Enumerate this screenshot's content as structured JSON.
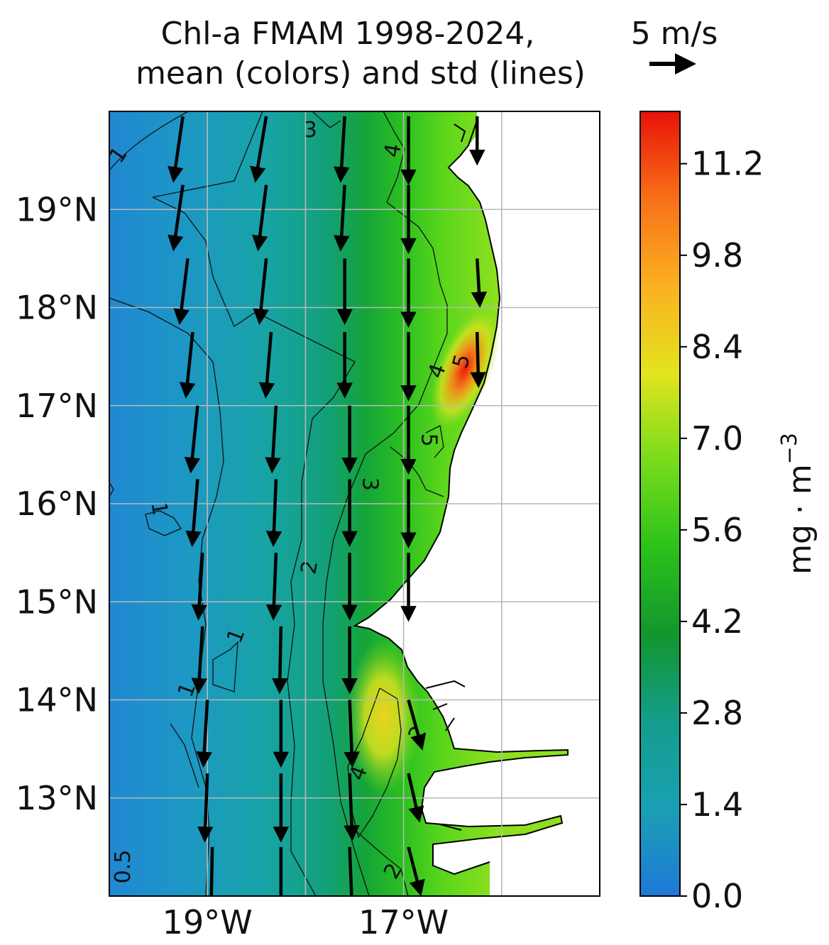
{
  "title_line1": "Chl-a FMAM 1998-2024,",
  "title_line2": "mean (colors) and std (lines)",
  "wind_key": {
    "label": "5 m/s",
    "speed": 5
  },
  "chart_data": {
    "type": "map",
    "map_extent": {
      "lon": [
        -20.0,
        -15.0
      ],
      "lat": [
        12.0,
        20.0
      ]
    },
    "lat_ticks": [
      {
        "value": 13,
        "label": "13°N"
      },
      {
        "value": 14,
        "label": "14°N"
      },
      {
        "value": 15,
        "label": "15°N"
      },
      {
        "value": 16,
        "label": "16°N"
      },
      {
        "value": 17,
        "label": "17°N"
      },
      {
        "value": 18,
        "label": "18°N"
      },
      {
        "value": 19,
        "label": "19°N"
      }
    ],
    "lon_ticks": [
      {
        "value": -19,
        "label": "19°W"
      },
      {
        "value": -17,
        "label": "17°W"
      }
    ],
    "gridlines": {
      "lon": [
        -19,
        -18,
        -17,
        -16
      ],
      "lat": [
        13,
        14,
        15,
        16,
        17,
        18,
        19
      ]
    },
    "colorbar": {
      "label": "mg · m",
      "label_exponent": "−3",
      "range": [
        0,
        12
      ],
      "ticks": [
        "0.0",
        "1.4",
        "2.8",
        "4.2",
        "5.6",
        "7.0",
        "8.4",
        "9.8",
        "11.2"
      ],
      "tick_values": [
        0,
        1.4,
        2.8,
        4.2,
        5.6,
        7.0,
        8.4,
        9.8,
        11.2
      ],
      "colors": [
        "#1f78d8",
        "#1aa0b4",
        "#139e8c",
        "#12962e",
        "#2cc21a",
        "#78dc1c",
        "#e4e41e",
        "#fbb021",
        "#f87018",
        "#e81208"
      ]
    },
    "contour_labels": [
      {
        "text": "1",
        "lon": -19.9,
        "lat": 19.55,
        "rotate": -55
      },
      {
        "text": "3",
        "lon": -17.95,
        "lat": 19.8,
        "rotate": 0
      },
      {
        "text": "4",
        "lon": -17.1,
        "lat": 19.6,
        "rotate": -80
      },
      {
        "text": "4",
        "lon": -16.65,
        "lat": 17.35,
        "rotate": -70
      },
      {
        "text": "5",
        "lon": -16.4,
        "lat": 17.45,
        "rotate": -75
      },
      {
        "text": "5",
        "lon": -16.75,
        "lat": 16.65,
        "rotate": 90
      },
      {
        "text": "3",
        "lon": -17.35,
        "lat": 16.2,
        "rotate": 90
      },
      {
        "text": "1",
        "lon": -19.5,
        "lat": 15.95,
        "rotate": 80
      },
      {
        "text": "2",
        "lon": -17.95,
        "lat": 15.35,
        "rotate": -80
      },
      {
        "text": "1",
        "lon": -18.7,
        "lat": 14.65,
        "rotate": -70
      },
      {
        "text": "1",
        "lon": -19.2,
        "lat": 14.1,
        "rotate": -70
      },
      {
        "text": "2",
        "lon": -16.85,
        "lat": 13.65,
        "rotate": -60
      },
      {
        "text": "4",
        "lon": -17.45,
        "lat": 13.25,
        "rotate": -70
      },
      {
        "text": "2",
        "lon": -17.1,
        "lat": 12.25,
        "rotate": -60
      },
      {
        "text": "0.5",
        "lon": -19.85,
        "lat": 12.3,
        "rotate": -90
      }
    ],
    "wind_vectors": [
      {
        "lon": -19.25,
        "lat": 19.95,
        "u": -0.7,
        "v": -4.8
      },
      {
        "lon": -18.4,
        "lat": 19.95,
        "u": -0.8,
        "v": -4.8
      },
      {
        "lon": -17.6,
        "lat": 19.95,
        "u": -0.3,
        "v": -4.8
      },
      {
        "lon": -16.95,
        "lat": 19.95,
        "u": 0.0,
        "v": -5.0
      },
      {
        "lon": -16.25,
        "lat": 19.95,
        "u": 0.0,
        "v": -3.5
      },
      {
        "lon": -19.25,
        "lat": 19.25,
        "u": -0.7,
        "v": -4.8
      },
      {
        "lon": -18.4,
        "lat": 19.25,
        "u": -0.6,
        "v": -4.8
      },
      {
        "lon": -17.6,
        "lat": 19.25,
        "u": -0.3,
        "v": -4.8
      },
      {
        "lon": -16.95,
        "lat": 19.25,
        "u": 0.0,
        "v": -5.0
      },
      {
        "lon": -19.2,
        "lat": 18.5,
        "u": -0.6,
        "v": -4.8
      },
      {
        "lon": -18.4,
        "lat": 18.5,
        "u": -0.5,
        "v": -4.8
      },
      {
        "lon": -17.6,
        "lat": 18.5,
        "u": 0.0,
        "v": -4.8
      },
      {
        "lon": -16.95,
        "lat": 18.5,
        "u": 0.0,
        "v": -5.0
      },
      {
        "lon": -16.25,
        "lat": 18.5,
        "u": 0.2,
        "v": -3.5
      },
      {
        "lon": -19.15,
        "lat": 17.75,
        "u": -0.5,
        "v": -4.8
      },
      {
        "lon": -18.35,
        "lat": 17.75,
        "u": -0.4,
        "v": -4.8
      },
      {
        "lon": -17.6,
        "lat": 17.75,
        "u": 0.0,
        "v": -4.8
      },
      {
        "lon": -16.95,
        "lat": 17.75,
        "u": 0.0,
        "v": -5.0
      },
      {
        "lon": -16.25,
        "lat": 17.75,
        "u": 0.1,
        "v": -4.0
      },
      {
        "lon": -19.1,
        "lat": 17.0,
        "u": -0.5,
        "v": -4.9
      },
      {
        "lon": -18.3,
        "lat": 17.0,
        "u": -0.3,
        "v": -4.9
      },
      {
        "lon": -17.55,
        "lat": 17.0,
        "u": 0.0,
        "v": -4.9
      },
      {
        "lon": -16.95,
        "lat": 17.0,
        "u": 0.0,
        "v": -5.0
      },
      {
        "lon": -19.1,
        "lat": 16.25,
        "u": -0.4,
        "v": -4.9
      },
      {
        "lon": -18.3,
        "lat": 16.25,
        "u": -0.2,
        "v": -4.9
      },
      {
        "lon": -17.55,
        "lat": 16.25,
        "u": 0.0,
        "v": -4.9
      },
      {
        "lon": -16.95,
        "lat": 16.25,
        "u": 0.0,
        "v": -5.0
      },
      {
        "lon": -19.05,
        "lat": 15.5,
        "u": -0.3,
        "v": -4.9
      },
      {
        "lon": -18.3,
        "lat": 15.5,
        "u": -0.2,
        "v": -4.9
      },
      {
        "lon": -17.55,
        "lat": 15.5,
        "u": 0.0,
        "v": -4.9
      },
      {
        "lon": -16.95,
        "lat": 15.5,
        "u": 0.0,
        "v": -5.0
      },
      {
        "lon": -19.05,
        "lat": 14.75,
        "u": -0.3,
        "v": -4.9
      },
      {
        "lon": -18.25,
        "lat": 14.75,
        "u": -0.1,
        "v": -4.9
      },
      {
        "lon": -17.55,
        "lat": 14.75,
        "u": 0.0,
        "v": -4.9
      },
      {
        "lon": -19.0,
        "lat": 14.0,
        "u": -0.3,
        "v": -4.9
      },
      {
        "lon": -18.25,
        "lat": 14.0,
        "u": 0.0,
        "v": -4.9
      },
      {
        "lon": -17.55,
        "lat": 14.0,
        "u": 0.2,
        "v": -4.9
      },
      {
        "lon": -16.95,
        "lat": 14.0,
        "u": 1.0,
        "v": -3.6
      },
      {
        "lon": -19.0,
        "lat": 13.25,
        "u": -0.2,
        "v": -5.0
      },
      {
        "lon": -18.25,
        "lat": 13.25,
        "u": 0.0,
        "v": -5.0
      },
      {
        "lon": -17.55,
        "lat": 13.25,
        "u": 0.2,
        "v": -4.9
      },
      {
        "lon": -16.95,
        "lat": 13.25,
        "u": 0.8,
        "v": -3.5
      },
      {
        "lon": -18.95,
        "lat": 12.5,
        "u": -0.1,
        "v": -5.0
      },
      {
        "lon": -18.25,
        "lat": 12.5,
        "u": 0.0,
        "v": -5.0
      },
      {
        "lon": -17.55,
        "lat": 12.5,
        "u": 0.2,
        "v": -4.9
      },
      {
        "lon": -16.95,
        "lat": 12.5,
        "u": 0.9,
        "v": -3.5
      }
    ]
  }
}
